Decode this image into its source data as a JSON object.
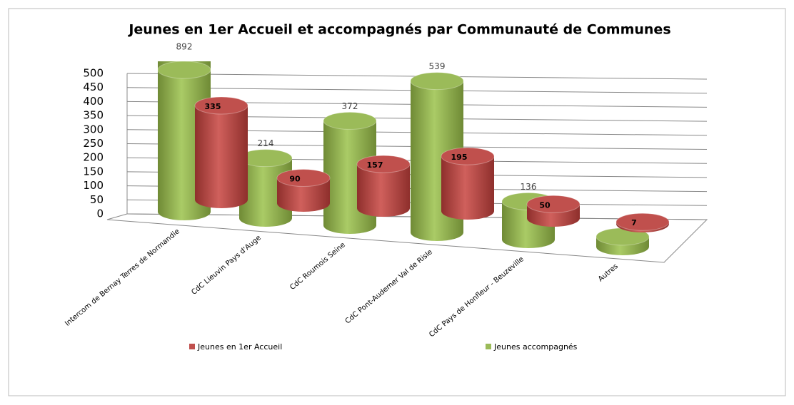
{
  "chart_data": {
    "type": "bar3d",
    "title": "Jeunes en 1er Accueil et accompagnés par Communauté de Communes",
    "categories": [
      "Intercom de Bernay Terres de Normandie",
      "CdC Lieuvin Pays d'Auge",
      "CdC Roumois Seine",
      "CdC Pont-Audemer Val de Risle",
      "CdC Pays de Honfleur - Beuzeville",
      "Autres"
    ],
    "series": [
      {
        "name": "Jeunes en 1er Accueil",
        "color": "#c0504d",
        "values": [
          335,
          90,
          157,
          195,
          50,
          7
        ]
      },
      {
        "name": "Jeunes accompagnés",
        "color": "#9bbb59",
        "values": [
          892,
          214,
          372,
          539,
          136,
          36
        ]
      }
    ],
    "ylim": [
      0,
      500
    ],
    "yticks": [
      0,
      50,
      100,
      150,
      200,
      250,
      300,
      350,
      400,
      450,
      500
    ],
    "grid": true,
    "legend": "bottom"
  }
}
